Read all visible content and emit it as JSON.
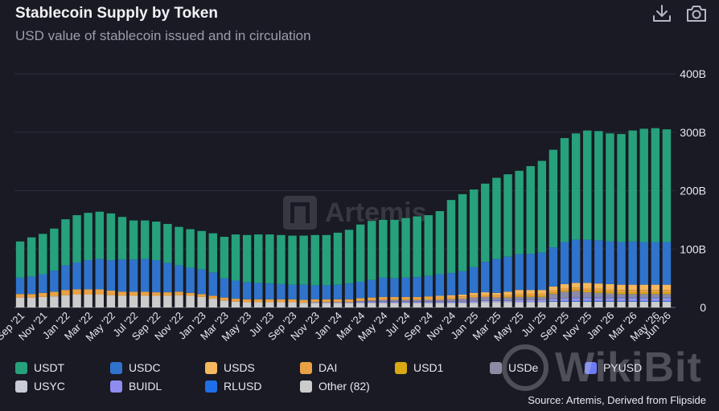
{
  "header": {
    "title": "Stablecoin Supply by Token",
    "subtitle": "USD value of stablecoin issued and in circulation"
  },
  "toolbar": {
    "download_icon": "download-icon",
    "camera_icon": "camera-icon"
  },
  "watermark": {
    "text": "Artemis"
  },
  "brand_watermark": {
    "text": "WikiBit"
  },
  "source": "Source: Artemis, Derived from Flipside",
  "chart_data": {
    "type": "bar",
    "stacked": true,
    "ylim": [
      0,
      400
    ],
    "y_ticks": [
      "0",
      "100B",
      "200B",
      "300B",
      "400B"
    ],
    "y_tick_values": [
      0,
      100,
      200,
      300,
      400
    ],
    "unit": "B",
    "grid": true,
    "legend_position": "bottom",
    "x_tick_labels": [
      "Sep '21",
      "Nov '21",
      "Jan '22",
      "Mar '22",
      "May '22",
      "Jul '22",
      "Sep '22",
      "Nov '22",
      "Jan '23",
      "Mar '23",
      "May '23",
      "Jul '23",
      "Sep '23",
      "Nov '23",
      "Jan '24",
      "Mar '24",
      "May '24",
      "Jul '24",
      "Sep '24",
      "Nov '24",
      "Jan '25",
      "Mar '25",
      "May '25",
      "Jul '25",
      "Sep '25",
      "Nov '25",
      "Jan '26",
      "Mar '26",
      "May '26",
      "Jun '26"
    ],
    "tick_every": 2,
    "categories": [
      "Sep '21",
      "Oct '21",
      "Nov '21",
      "Dec '21",
      "Jan '22",
      "Feb '22",
      "Mar '22",
      "Apr '22",
      "May '22",
      "Jun '22",
      "Jul '22",
      "Aug '22",
      "Sep '22",
      "Oct '22",
      "Nov '22",
      "Dec '22",
      "Jan '23",
      "Feb '23",
      "Mar '23",
      "Apr '23",
      "May '23",
      "Jun '23",
      "Jul '23",
      "Aug '23",
      "Sep '23",
      "Oct '23",
      "Nov '23",
      "Dec '23",
      "Jan '24",
      "Feb '24",
      "Mar '24",
      "Apr '24",
      "May '24",
      "Jun '24",
      "Jul '24",
      "Aug '24",
      "Sep '24",
      "Oct '24",
      "Nov '24",
      "Dec '24",
      "Jan '25",
      "Feb '25",
      "Mar '25",
      "Apr '25",
      "May '25",
      "Jun '25",
      "Jul '25",
      "Aug '25",
      "Sep '25",
      "Oct '25",
      "Nov '25",
      "Dec '25",
      "Jan '26",
      "Feb '26",
      "Mar '26",
      "Apr '26",
      "May '26",
      "Jun '26"
    ],
    "series": [
      {
        "name": "Other (82)",
        "color": "#cccccc",
        "values": [
          17,
          17,
          18,
          19,
          21,
          22,
          22,
          22,
          21,
          20,
          20,
          20,
          20,
          20,
          21,
          20,
          18,
          15,
          12,
          10,
          9,
          9,
          9,
          9,
          9,
          8,
          8,
          8,
          8,
          8,
          8,
          8,
          8,
          8,
          8,
          8,
          8,
          8,
          8,
          8,
          8,
          9,
          9,
          9,
          9,
          9,
          9,
          10,
          10,
          10,
          10,
          10,
          10,
          10,
          10,
          10,
          10,
          10
        ]
      },
      {
        "name": "RLUSD",
        "color": "#1f6fe8",
        "values": [
          0,
          0,
          0,
          0,
          0,
          0,
          0,
          0,
          0,
          0,
          0,
          0,
          0,
          0,
          0,
          0,
          0,
          0,
          0,
          0,
          0,
          0,
          0,
          0,
          0,
          0,
          0,
          0,
          0,
          0,
          0,
          0,
          0,
          0,
          0,
          0,
          0,
          0,
          0,
          0,
          0,
          0,
          0,
          0,
          0,
          0,
          0,
          1,
          1,
          1,
          1,
          1,
          1,
          1,
          1,
          1,
          1,
          1
        ]
      },
      {
        "name": "BUIDL",
        "color": "#8f8cf0",
        "values": [
          0,
          0,
          0,
          0,
          0,
          0,
          0,
          0,
          0,
          0,
          0,
          0,
          0,
          0,
          0,
          0,
          0,
          0,
          0,
          0,
          0,
          0,
          0,
          0,
          0,
          0,
          0,
          0,
          0,
          0,
          1,
          1,
          1,
          1,
          1,
          1,
          1,
          1,
          1,
          1,
          1,
          1,
          1,
          1,
          2,
          2,
          2,
          2,
          3,
          3,
          3,
          3,
          3,
          3,
          3,
          3,
          3,
          3
        ]
      },
      {
        "name": "USYC",
        "color": "#c9ccd6",
        "values": [
          0,
          0,
          0,
          0,
          0,
          0,
          0,
          0,
          0,
          0,
          0,
          0,
          0,
          0,
          0,
          0,
          0,
          0,
          0,
          0,
          0,
          0,
          0,
          0,
          0,
          0,
          0,
          0,
          0,
          0,
          0,
          0,
          0,
          0,
          0,
          0,
          0,
          0,
          0,
          0,
          1,
          1,
          1,
          1,
          1,
          1,
          1,
          1,
          1,
          1,
          1,
          1,
          1,
          1,
          1,
          1,
          1,
          1
        ]
      },
      {
        "name": "PYUSD",
        "color": "#6d7cf2",
        "values": [
          0,
          0,
          0,
          0,
          0,
          0,
          0,
          0,
          0,
          0,
          0,
          0,
          0,
          0,
          0,
          0,
          0,
          0,
          0,
          0,
          0,
          0,
          0,
          0,
          0,
          0,
          1,
          1,
          1,
          1,
          1,
          1,
          1,
          1,
          1,
          1,
          1,
          1,
          1,
          1,
          1,
          1,
          1,
          1,
          1,
          1,
          1,
          1,
          1,
          2,
          2,
          2,
          2,
          2,
          2,
          2,
          2,
          2
        ]
      },
      {
        "name": "USDe",
        "color": "#8d8aa6",
        "values": [
          0,
          0,
          0,
          0,
          0,
          0,
          0,
          0,
          0,
          0,
          0,
          0,
          0,
          0,
          0,
          0,
          0,
          0,
          0,
          0,
          0,
          0,
          0,
          0,
          0,
          0,
          0,
          0,
          0,
          0,
          1,
          2,
          3,
          3,
          3,
          3,
          3,
          3,
          4,
          5,
          6,
          6,
          5,
          5,
          5,
          5,
          5,
          8,
          11,
          11,
          9,
          8,
          7,
          6,
          6,
          6,
          6,
          6
        ]
      },
      {
        "name": "USD1",
        "color": "#d9a812",
        "values": [
          0,
          0,
          0,
          0,
          0,
          0,
          0,
          0,
          0,
          0,
          0,
          0,
          0,
          0,
          0,
          0,
          0,
          0,
          0,
          0,
          0,
          0,
          0,
          0,
          0,
          0,
          0,
          0,
          0,
          0,
          0,
          0,
          0,
          0,
          0,
          0,
          0,
          0,
          0,
          0,
          0,
          0,
          0,
          1,
          2,
          2,
          2,
          2,
          2,
          2,
          3,
          3,
          3,
          3,
          3,
          3,
          3,
          3
        ]
      },
      {
        "name": "DAI",
        "color": "#e8a245",
        "values": [
          6,
          6,
          7,
          8,
          9,
          9,
          9,
          9,
          8,
          7,
          7,
          7,
          6,
          6,
          6,
          5,
          5,
          5,
          5,
          5,
          5,
          5,
          5,
          5,
          5,
          5,
          5,
          5,
          5,
          5,
          5,
          5,
          5,
          5,
          5,
          5,
          5,
          5,
          4,
          4,
          4,
          4,
          4,
          4,
          4,
          4,
          4,
          4,
          4,
          4,
          4,
          4,
          4,
          4,
          4,
          4,
          4,
          4
        ]
      },
      {
        "name": "USDS",
        "color": "#f5b85e",
        "values": [
          0,
          0,
          0,
          0,
          0,
          0,
          0,
          0,
          0,
          0,
          0,
          0,
          0,
          0,
          0,
          0,
          0,
          0,
          0,
          0,
          0,
          0,
          0,
          0,
          0,
          0,
          0,
          0,
          0,
          0,
          0,
          0,
          0,
          0,
          0,
          0,
          1,
          2,
          3,
          3,
          4,
          4,
          4,
          5,
          6,
          6,
          6,
          7,
          7,
          8,
          9,
          9,
          9,
          9,
          9,
          9,
          9,
          9
        ]
      },
      {
        "name": "USDC",
        "color": "#2f73cc",
        "values": [
          28,
          30,
          32,
          36,
          42,
          46,
          50,
          52,
          52,
          55,
          55,
          56,
          55,
          50,
          45,
          43,
          42,
          40,
          33,
          31,
          29,
          28,
          27,
          26,
          25,
          26,
          24,
          24,
          25,
          27,
          28,
          30,
          33,
          32,
          33,
          34,
          35,
          37,
          38,
          40,
          44,
          52,
          58,
          60,
          61,
          62,
          64,
          67,
          72,
          74,
          74,
          74,
          73,
          73,
          74,
          73,
          73,
          73
        ]
      },
      {
        "name": "USDT",
        "color": "#26a17b",
        "values": [
          62,
          67,
          69,
          72,
          79,
          81,
          81,
          81,
          80,
          73,
          67,
          66,
          66,
          67,
          66,
          66,
          66,
          67,
          71,
          79,
          81,
          83,
          84,
          84,
          84,
          84,
          86,
          86,
          89,
          92,
          98,
          101,
          99,
          100,
          102,
          104,
          104,
          108,
          125,
          132,
          133,
          134,
          139,
          141,
          143,
          150,
          157,
          167,
          178,
          182,
          187,
          187,
          185,
          185,
          190,
          194,
          195,
          193
        ]
      }
    ]
  },
  "legend": [
    {
      "label": "USDT",
      "color": "#26a17b"
    },
    {
      "label": "USDC",
      "color": "#2f73cc"
    },
    {
      "label": "USDS",
      "color": "#f5b85e"
    },
    {
      "label": "DAI",
      "color": "#e8a245"
    },
    {
      "label": "USD1",
      "color": "#d9a812"
    },
    {
      "label": "USDe",
      "color": "#8d8aa6"
    },
    {
      "label": "PYUSD",
      "color": "#6d7cf2"
    },
    {
      "label": "USYC",
      "color": "#c9ccd6"
    },
    {
      "label": "BUIDL",
      "color": "#8f8cf0"
    },
    {
      "label": "RLUSD",
      "color": "#1f6fe8"
    },
    {
      "label": "Other (82)",
      "color": "#cccccc"
    }
  ]
}
